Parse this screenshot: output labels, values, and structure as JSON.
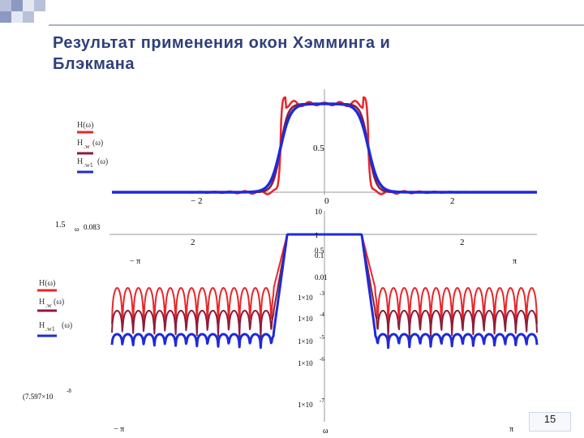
{
  "slide": {
    "title_line1": "Результат применения окон Хэмминга и",
    "title_line2": "Блэкмана",
    "page_number": "15"
  },
  "chart_data": [
    {
      "type": "line",
      "series": [
        {
          "name": "H(ω)",
          "color": "#e8262b"
        },
        {
          "name": "H_w(ω)",
          "color": "#8b1c3a"
        },
        {
          "name": "H_w1(ω)",
          "color": "#1f2bd6"
        }
      ],
      "legend": [
        "H(ω)",
        "H",
        ".w",
        "(ω)",
        "H",
        ".w1",
        "(ω)"
      ],
      "xtick_labels": [
        "− 2",
        "0",
        "2"
      ],
      "ytick_labels": [
        "0.5"
      ],
      "x_range": [
        -3.14,
        3.14
      ],
      "passband": [
        -0.65,
        0.65
      ],
      "legend_placement": "left"
    },
    {
      "type": "line",
      "log_scale": true,
      "series": [
        {
          "name": "H(ω)",
          "color": "#e8262b"
        },
        {
          "name": "H_w(ω)",
          "color": "#8b1c3a"
        },
        {
          "name": "H_w1(ω)",
          "color": "#1f2bd6"
        }
      ],
      "legend": [
        "H(ω)",
        "H",
        ".w",
        "(ω)",
        "H",
        ".w1",
        "(ω)"
      ],
      "ytick_labels": [
        "10",
        "1",
        "0.5",
        "0.1",
        "0.01",
        "1×10",
        "1×10",
        "1×10",
        "1×10",
        "1×10"
      ],
      "ytick_exponents": [
        "",
        "",
        "",
        "",
        "",
        "-3",
        "-4",
        "-5",
        "-6",
        "-7"
      ],
      "xtick_labels": [
        "2",
        "2"
      ],
      "x_end_labels": [
        "− π",
        "π"
      ],
      "x_bottom_labels": [
        "− π",
        "ω",
        "π"
      ],
      "side_labels": {
        "top_left": "1.5",
        "ω_value": "ω",
        "ω_text": "0.083",
        "bottom_left": "(7.597×10",
        "bottom_exp": "-8"
      },
      "x_range": [
        -3.14,
        3.14
      ]
    }
  ]
}
